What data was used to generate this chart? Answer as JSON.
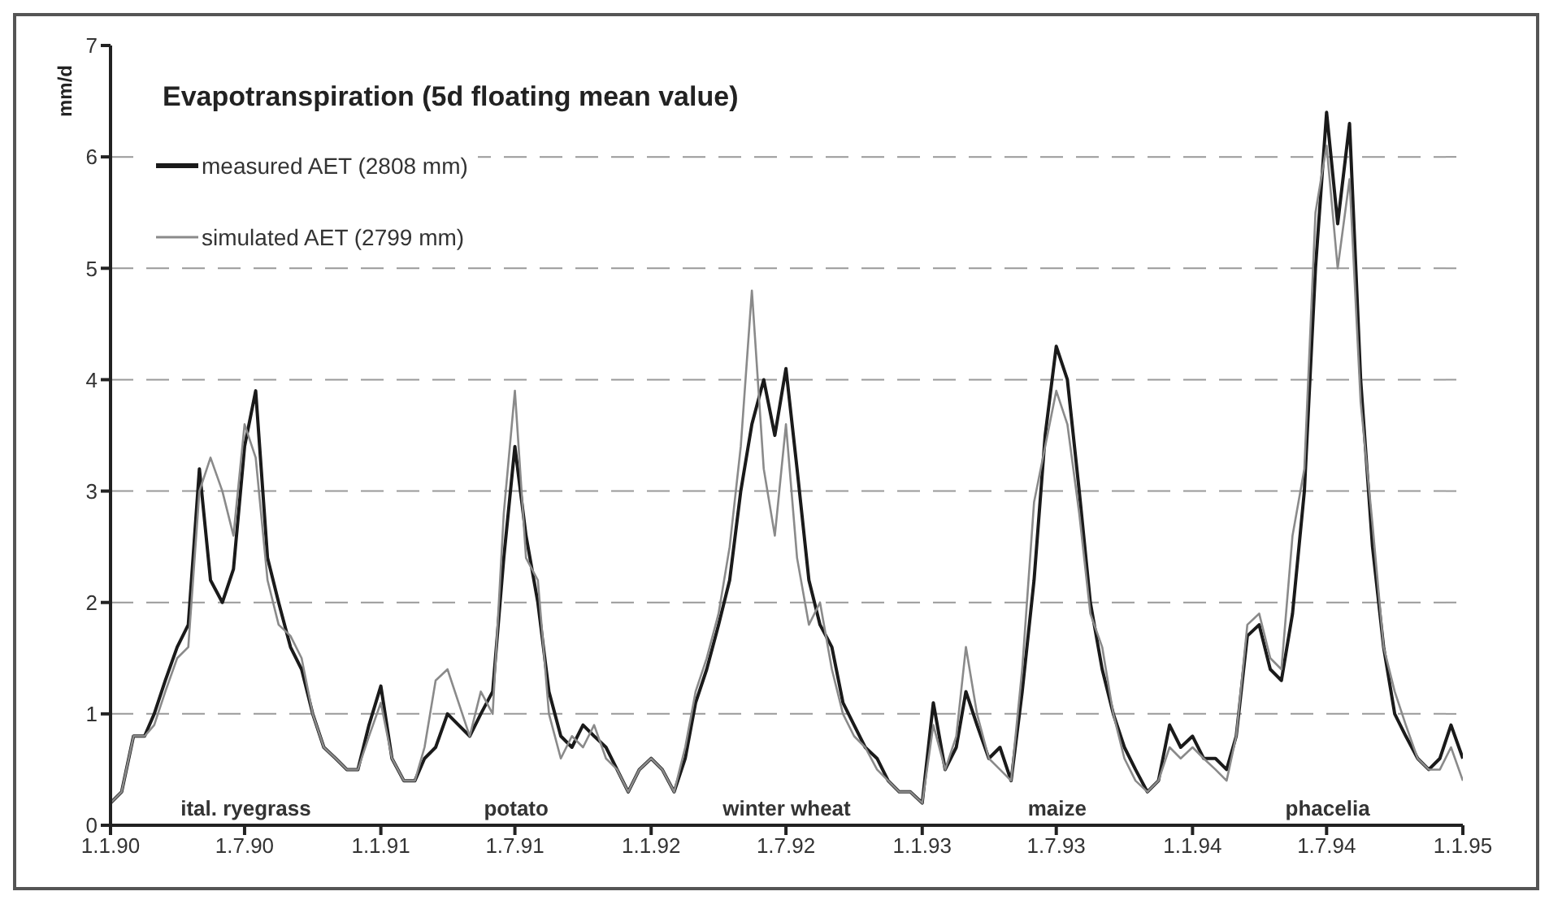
{
  "chart_data": {
    "type": "line",
    "title": "Evapotranspiration (5d floating mean value)",
    "ylabel": "mm/d",
    "x": [
      "1990-01-01",
      "1990-01-16",
      "1990-02-01",
      "1990-02-16",
      "1990-03-01",
      "1990-03-16",
      "1990-04-01",
      "1990-04-16",
      "1990-05-01",
      "1990-05-16",
      "1990-06-01",
      "1990-06-16",
      "1990-07-01",
      "1990-07-16",
      "1990-08-01",
      "1990-08-16",
      "1990-09-01",
      "1990-09-16",
      "1990-10-01",
      "1990-10-16",
      "1990-11-01",
      "1990-11-16",
      "1990-12-01",
      "1990-12-16",
      "1991-01-01",
      "1991-01-16",
      "1991-02-01",
      "1991-02-16",
      "1991-03-01",
      "1991-03-16",
      "1991-04-01",
      "1991-04-16",
      "1991-05-01",
      "1991-05-16",
      "1991-06-01",
      "1991-06-16",
      "1991-07-01",
      "1991-07-16",
      "1991-08-01",
      "1991-08-16",
      "1991-09-01",
      "1991-09-16",
      "1991-10-01",
      "1991-10-16",
      "1991-11-01",
      "1991-11-16",
      "1991-12-01",
      "1991-12-16",
      "1992-01-01",
      "1992-01-16",
      "1992-02-01",
      "1992-02-16",
      "1992-03-01",
      "1992-03-16",
      "1992-04-01",
      "1992-04-16",
      "1992-05-01",
      "1992-05-16",
      "1992-06-01",
      "1992-06-16",
      "1992-07-01",
      "1992-07-16",
      "1992-08-01",
      "1992-08-16",
      "1992-09-01",
      "1992-09-16",
      "1992-10-01",
      "1992-10-16",
      "1992-11-01",
      "1992-11-16",
      "1992-12-01",
      "1992-12-16",
      "1993-01-01",
      "1993-01-16",
      "1993-02-01",
      "1993-02-16",
      "1993-03-01",
      "1993-03-16",
      "1993-04-01",
      "1993-04-16",
      "1993-05-01",
      "1993-05-16",
      "1993-06-01",
      "1993-06-16",
      "1993-07-01",
      "1993-07-16",
      "1993-08-01",
      "1993-08-16",
      "1993-09-01",
      "1993-09-16",
      "1993-10-01",
      "1993-10-16",
      "1993-11-01",
      "1993-11-16",
      "1993-12-01",
      "1993-12-16",
      "1994-01-01",
      "1994-01-16",
      "1994-02-01",
      "1994-02-16",
      "1994-03-01",
      "1994-03-16",
      "1994-04-01",
      "1994-04-16",
      "1994-05-01",
      "1994-05-16",
      "1994-06-01",
      "1994-06-16",
      "1994-07-01",
      "1994-07-16",
      "1994-08-01",
      "1994-08-16",
      "1994-09-01",
      "1994-09-16",
      "1994-10-01",
      "1994-10-16",
      "1994-11-01",
      "1994-11-16",
      "1994-12-01",
      "1994-12-16",
      "1995-01-01"
    ],
    "series": [
      {
        "name": "measured AET (2808 mm)",
        "color": "#1a1a1a",
        "values": [
          0.2,
          0.3,
          0.8,
          0.8,
          1.0,
          1.3,
          1.6,
          1.8,
          3.2,
          2.2,
          2.0,
          2.3,
          3.4,
          3.9,
          2.4,
          2.0,
          1.6,
          1.4,
          1.0,
          0.7,
          0.6,
          0.5,
          0.5,
          0.9,
          1.25,
          0.6,
          0.4,
          0.4,
          0.6,
          0.7,
          1.0,
          0.9,
          0.8,
          1.0,
          1.2,
          2.4,
          3.4,
          2.6,
          2.0,
          1.2,
          0.8,
          0.7,
          0.9,
          0.8,
          0.7,
          0.5,
          0.3,
          0.5,
          0.6,
          0.5,
          0.3,
          0.6,
          1.1,
          1.4,
          1.8,
          2.2,
          3.0,
          3.6,
          4.0,
          3.5,
          4.1,
          3.2,
          2.2,
          1.8,
          1.6,
          1.1,
          0.9,
          0.7,
          0.6,
          0.4,
          0.3,
          0.3,
          0.2,
          1.1,
          0.5,
          0.7,
          1.2,
          0.9,
          0.6,
          0.7,
          0.4,
          1.2,
          2.2,
          3.5,
          4.3,
          4.0,
          3.0,
          2.0,
          1.4,
          1.0,
          0.7,
          0.5,
          0.3,
          0.4,
          0.9,
          0.7,
          0.8,
          0.6,
          0.6,
          0.5,
          0.8,
          1.7,
          1.8,
          1.4,
          1.3,
          1.9,
          3.0,
          5.0,
          6.4,
          5.4,
          6.3,
          4.0,
          2.5,
          1.6,
          1.0,
          0.8,
          0.6,
          0.5,
          0.6,
          0.9,
          0.6
        ]
      },
      {
        "name": "simulated AET (2799 mm)",
        "color": "#8a8a8a",
        "values": [
          0.2,
          0.3,
          0.8,
          0.8,
          0.9,
          1.2,
          1.5,
          1.6,
          3.0,
          3.3,
          3.0,
          2.6,
          3.6,
          3.3,
          2.2,
          1.8,
          1.7,
          1.5,
          1.0,
          0.7,
          0.6,
          0.5,
          0.5,
          0.8,
          1.1,
          0.6,
          0.4,
          0.4,
          0.7,
          1.3,
          1.4,
          1.1,
          0.8,
          1.2,
          1.0,
          2.8,
          3.9,
          2.4,
          2.2,
          1.0,
          0.6,
          0.8,
          0.7,
          0.9,
          0.6,
          0.5,
          0.3,
          0.5,
          0.6,
          0.5,
          0.3,
          0.7,
          1.2,
          1.5,
          1.9,
          2.5,
          3.4,
          4.8,
          3.2,
          2.6,
          3.6,
          2.4,
          1.8,
          2.0,
          1.4,
          1.0,
          0.8,
          0.7,
          0.5,
          0.4,
          0.3,
          0.3,
          0.2,
          0.9,
          0.5,
          0.8,
          1.6,
          1.0,
          0.6,
          0.5,
          0.4,
          1.4,
          2.9,
          3.4,
          3.9,
          3.6,
          2.8,
          1.9,
          1.6,
          1.0,
          0.6,
          0.4,
          0.3,
          0.4,
          0.7,
          0.6,
          0.7,
          0.6,
          0.5,
          0.4,
          0.8,
          1.8,
          1.9,
          1.5,
          1.4,
          2.6,
          3.2,
          5.5,
          6.1,
          5.0,
          5.8,
          3.8,
          2.7,
          1.6,
          1.2,
          0.9,
          0.6,
          0.5,
          0.5,
          0.7,
          0.4
        ]
      }
    ],
    "xlim": [
      "1990-01-01",
      "1995-01-01"
    ],
    "xticks": [
      {
        "value": "1990-01-01",
        "label": "1.1.90"
      },
      {
        "value": "1990-07-01",
        "label": "1.7.90"
      },
      {
        "value": "1991-01-01",
        "label": "1.1.91"
      },
      {
        "value": "1991-07-01",
        "label": "1.7.91"
      },
      {
        "value": "1992-01-01",
        "label": "1.1.92"
      },
      {
        "value": "1992-07-01",
        "label": "1.7.92"
      },
      {
        "value": "1993-01-01",
        "label": "1.1.93"
      },
      {
        "value": "1993-07-01",
        "label": "1.7.93"
      },
      {
        "value": "1994-01-01",
        "label": "1.1.94"
      },
      {
        "value": "1994-07-01",
        "label": "1.7.94"
      },
      {
        "value": "1995-01-01",
        "label": "1.1.95"
      }
    ],
    "ylim": [
      0,
      7
    ],
    "yticks": [
      0,
      1,
      2,
      3,
      4,
      5,
      6,
      7
    ],
    "grid": "y",
    "legend": "top left",
    "line_style": "solid",
    "marker": "none",
    "annotations": [
      "ital. ryegrass",
      "potato",
      "winter wheat",
      "maize",
      "phacelia"
    ]
  }
}
